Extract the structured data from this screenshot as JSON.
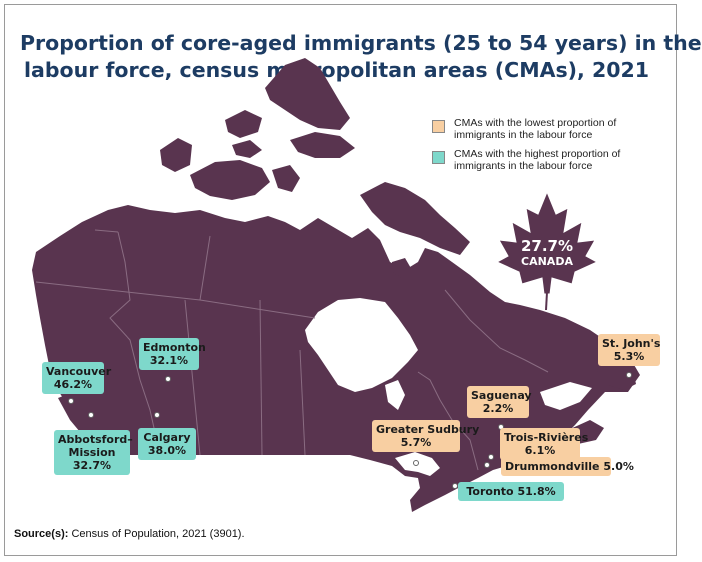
{
  "title": {
    "line1": "Proportion of core-aged immigrants (25 to 54 years) in the",
    "line2": "labour force, census metropolitan areas (CMAs), 2021"
  },
  "legend": [
    {
      "label": "CMAs with the lowest proportion of immigrants in the labour force",
      "color": "#f8cfa2"
    },
    {
      "label": "CMAs with the highest proportion of immigrants in the labour force",
      "color": "#7ed8cb"
    }
  ],
  "national": {
    "value": "27.7%",
    "name": "CANADA"
  },
  "colors": {
    "land": "#59344f",
    "borders": "#8a6c82",
    "high": "#7ed8cb",
    "low": "#f8cfa2",
    "title": "#1d3c63"
  },
  "cmas": [
    {
      "id": "vancouver",
      "name": "Vancouver",
      "value": "46.2%",
      "group": "high"
    },
    {
      "id": "abbotsford",
      "name": "Abbotsford–Mission",
      "value": "32.7%",
      "group": "high"
    },
    {
      "id": "edmonton",
      "name": "Edmonton",
      "value": "32.1%",
      "group": "high"
    },
    {
      "id": "calgary",
      "name": "Calgary",
      "value": "38.0%",
      "group": "high"
    },
    {
      "id": "toronto",
      "name": "Toronto",
      "value": "51.8%",
      "group": "high"
    },
    {
      "id": "sudbury",
      "name": "Greater Sudbury",
      "value": "5.7%",
      "group": "low"
    },
    {
      "id": "saguenay",
      "name": "Saguenay",
      "value": "2.2%",
      "group": "low"
    },
    {
      "id": "trois",
      "name": "Trois-Rivières",
      "value": "6.1%",
      "group": "low"
    },
    {
      "id": "drummondville",
      "name": "Drummondville",
      "value": "5.0%",
      "group": "low"
    },
    {
      "id": "stjohns",
      "name": "St. John's",
      "value": "5.3%",
      "group": "low"
    }
  ],
  "source": {
    "label": "Source(s):",
    "text": " Census of Population, 2021 (3901)."
  }
}
